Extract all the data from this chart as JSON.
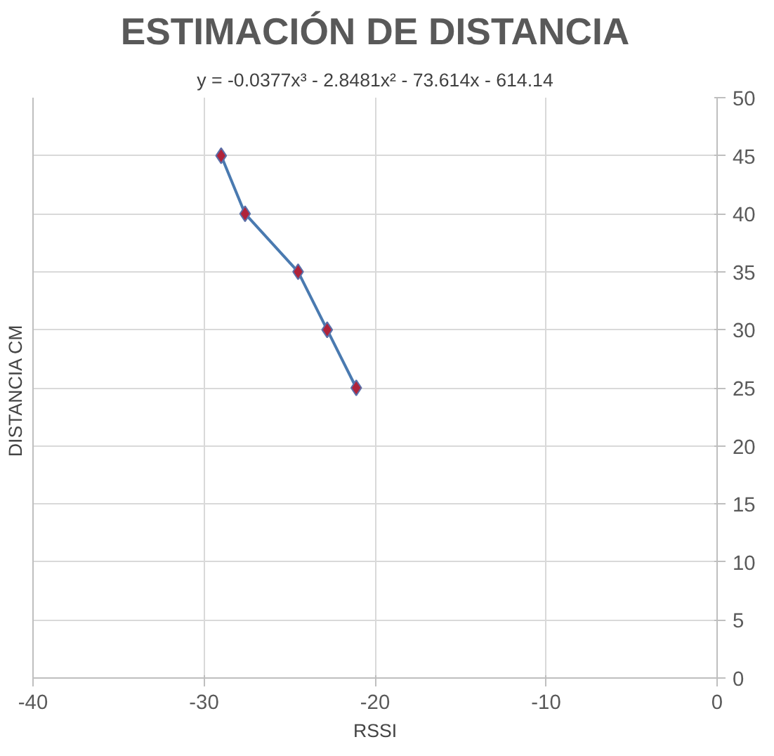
{
  "chart_data": {
    "type": "scatter",
    "title": "ESTIMACIÓN DE DISTANCIA",
    "xlabel": "RSSI",
    "ylabel": "DISTANCIA  CM",
    "annotations": [
      "y = -0.0377x³ - 2.8481x² - 73.614x - 614.14"
    ],
    "series": [
      {
        "color": "#b0233a",
        "marker": "diamond",
        "x": [
          -29.0,
          -27.6,
          -24.5,
          -22.8,
          -21.1
        ],
        "values": [
          45,
          40,
          35,
          30,
          25
        ]
      },
      {
        "type": "line",
        "color": "#4a7ab0",
        "line_style": "solid",
        "x": [
          -29.0,
          -27.6,
          -24.5,
          -22.8,
          -21.1
        ],
        "values": [
          45,
          40,
          35,
          30,
          25
        ]
      }
    ],
    "xlim": [
      -40,
      0
    ],
    "xticks": [
      -40,
      -30,
      -20,
      -10,
      0
    ],
    "ylim": [
      0,
      50
    ],
    "yticks": [
      0,
      5,
      10,
      15,
      20,
      25,
      30,
      35,
      40,
      45,
      50
    ],
    "grid": true
  }
}
